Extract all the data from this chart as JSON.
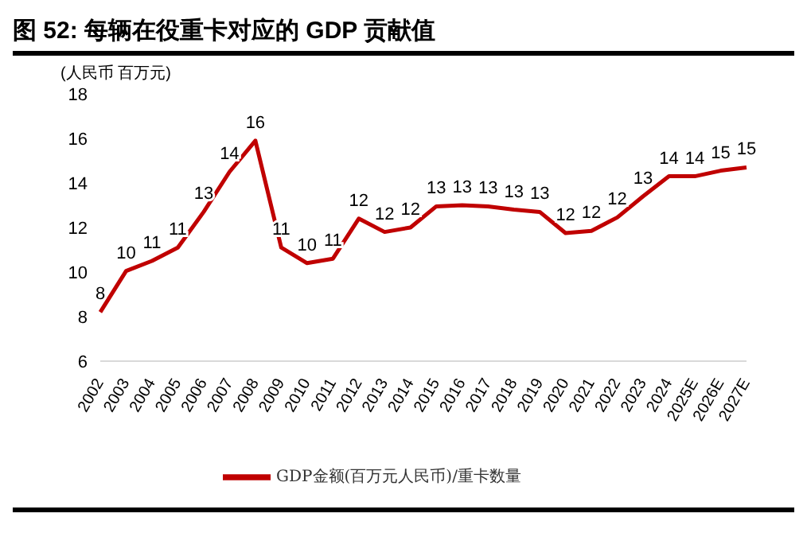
{
  "chart_data": {
    "type": "line",
    "title": "图 52: 每辆在役重卡对应的 GDP 贡献值",
    "ylabel": "(人民币 百万元)",
    "categories": [
      "2002",
      "2003",
      "2004",
      "2005",
      "2006",
      "2007",
      "2008",
      "2009",
      "2010",
      "2011",
      "2012",
      "2013",
      "2014",
      "2015",
      "2016",
      "2017",
      "2018",
      "2019",
      "2020",
      "2021",
      "2022",
      "2023",
      "2024",
      "2025E",
      "2026E",
      "2027E"
    ],
    "series": [
      {
        "name": "GDP金额(百万元人民币)/重卡数量",
        "color": "#c00000",
        "values": [
          8.2,
          10.05,
          10.5,
          11.1,
          12.7,
          14.5,
          15.9,
          11.1,
          10.4,
          10.6,
          12.4,
          11.8,
          12.0,
          12.95,
          13.0,
          12.95,
          12.8,
          12.7,
          11.75,
          11.85,
          12.45,
          13.4,
          14.3,
          14.3,
          14.55,
          14.7
        ],
        "value_labels": [
          "8",
          "10",
          "11",
          "11",
          "13",
          "14",
          "16",
          "11",
          "10",
          "11",
          "12",
          "12",
          "12",
          "13",
          "13",
          "13",
          "13",
          "13",
          "12",
          "12",
          "12",
          "13",
          "14",
          "14",
          "15",
          "15"
        ]
      }
    ],
    "ylim": [
      6,
      18
    ],
    "yticks": [
      6,
      8,
      10,
      12,
      14,
      16,
      18
    ],
    "grid": false,
    "legend": "bottom",
    "marker": "none",
    "line_style": "solid"
  }
}
